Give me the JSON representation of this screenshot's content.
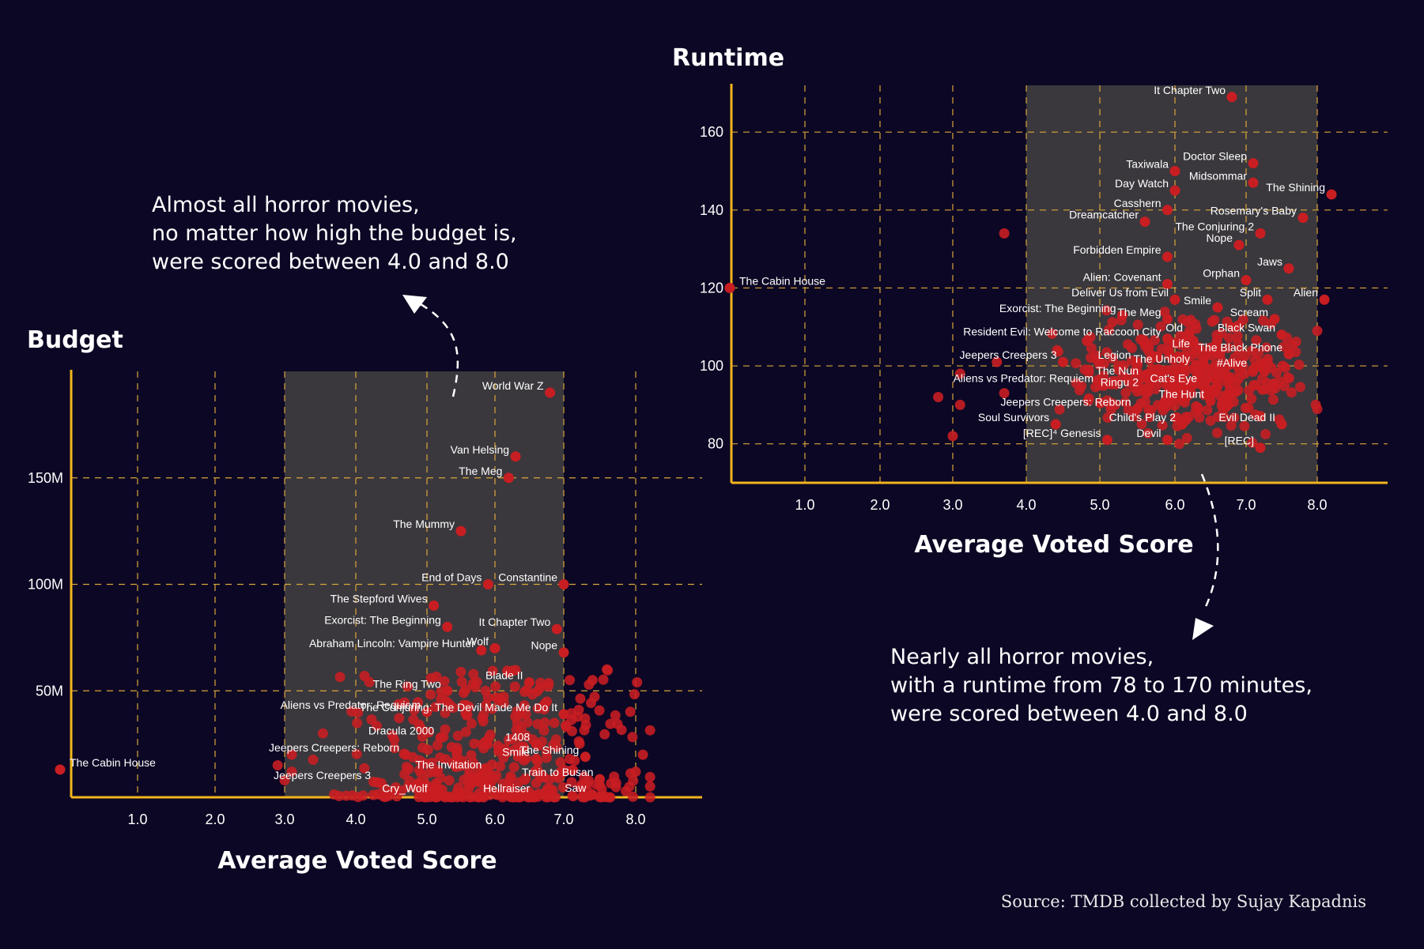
{
  "source": "Source: TMDB collected by Sujay Kapadnis",
  "annotations": {
    "budget_note": [
      "Almost all horror movies,",
      "no matter how high the budget is,",
      "were scored between 4.0 and 8.0"
    ],
    "runtime_note": [
      "Nearly all horror movies,",
      "with a runtime from 78 to 170 minutes,",
      "were scored between 4.0 and 8.0"
    ]
  },
  "colors": {
    "background": "#0c0724",
    "axis": "#f2b51d",
    "grid": "#d9a53a",
    "band": "#3a383d",
    "point": "#c81e22"
  },
  "chart_data": [
    {
      "id": "budget",
      "type": "scatter",
      "title": "Budget",
      "xlabel": "Average Voted Score",
      "ylabel": "Budget",
      "xlim": [
        0,
        9
      ],
      "ylim": [
        0,
        200000000
      ],
      "x_ticks": [
        1.0,
        2.0,
        3.0,
        4.0,
        5.0,
        6.0,
        7.0,
        8.0
      ],
      "x_tick_labels": [
        "1.0",
        "2.0",
        "3.0",
        "4.0",
        "5.0",
        "6.0",
        "7.0",
        "8.0"
      ],
      "y_ticks": [
        50000000,
        100000000,
        150000000
      ],
      "y_tick_labels": [
        "50M",
        "100M",
        "150M"
      ],
      "grid": true,
      "highlight_band": [
        3.0,
        7.0
      ],
      "labeled_points": [
        {
          "label": "World War Z",
          "x": 6.8,
          "y": 190000000
        },
        {
          "label": "Van Helsing",
          "x": 6.3,
          "y": 160000000
        },
        {
          "label": "The Meg",
          "x": 6.2,
          "y": 150000000
        },
        {
          "label": "The Mummy",
          "x": 5.5,
          "y": 125000000
        },
        {
          "label": "End of Days",
          "x": 5.9,
          "y": 100000000
        },
        {
          "label": "Constantine",
          "x": 7.0,
          "y": 100000000
        },
        {
          "label": "The Stepford Wives",
          "x": 5.1,
          "y": 90000000
        },
        {
          "label": "Exorcist: The Beginning",
          "x": 5.3,
          "y": 80000000
        },
        {
          "label": "It Chapter Two",
          "x": 6.9,
          "y": 79000000
        },
        {
          "label": "Abraham Lincoln: Vampire Hunter",
          "x": 5.8,
          "y": 69000000
        },
        {
          "label": "Wolf",
          "x": 6.0,
          "y": 70000000
        },
        {
          "label": "Nope",
          "x": 7.0,
          "y": 68000000
        },
        {
          "label": "Blade II",
          "x": 6.5,
          "y": 54000000
        },
        {
          "label": "The Ring Two",
          "x": 5.3,
          "y": 50000000
        },
        {
          "label": "Aliens vs Predator: Requiem",
          "x": 5.0,
          "y": 40000000
        },
        {
          "label": "The Conjuring: The Devil Made Me Do It",
          "x": 7.0,
          "y": 39000000
        },
        {
          "label": "Dracula 2000",
          "x": 5.2,
          "y": 28000000
        },
        {
          "label": "1408",
          "x": 6.6,
          "y": 25000000
        },
        {
          "label": "Jeepers Creepers: Reborn",
          "x": 4.7,
          "y": 20000000
        },
        {
          "label": "Smile",
          "x": 6.6,
          "y": 18000000
        },
        {
          "label": "The Shining",
          "x": 7.3,
          "y": 19000000
        },
        {
          "label": "The Invitation",
          "x": 5.9,
          "y": 12000000
        },
        {
          "label": "Train to Busan",
          "x": 7.5,
          "y": 8500000
        },
        {
          "label": "Jeepers Creepers 3",
          "x": 4.3,
          "y": 7000000
        },
        {
          "label": "Cry_Wolf",
          "x": 5.1,
          "y": 1000000
        },
        {
          "label": "Hellraiser",
          "x": 6.6,
          "y": 1000000
        },
        {
          "label": "Saw",
          "x": 7.4,
          "y": 1200000
        },
        {
          "label": "The Cabin House",
          "x": 0.0,
          "y": 13000000
        }
      ],
      "cloud": {
        "x_range": [
          2.9,
          8.2
        ],
        "y_range": [
          0,
          60000000
        ],
        "count": 420,
        "center_x": 6.0,
        "extra": [
          [
            2.9,
            15000000
          ],
          [
            3.1,
            20000000
          ],
          [
            3.1,
            12000000
          ],
          [
            3.0,
            8000000
          ],
          [
            8.1,
            20000000
          ],
          [
            8.0,
            12000000
          ],
          [
            7.6,
            60000000
          ],
          [
            7.4,
            55000000
          ]
        ]
      }
    },
    {
      "id": "runtime",
      "type": "scatter",
      "title": "Runtime",
      "xlabel": "Average Voted Score",
      "ylabel": "Runtime",
      "xlim": [
        0,
        9
      ],
      "ylim": [
        70,
        172
      ],
      "x_ticks": [
        1.0,
        2.0,
        3.0,
        4.0,
        5.0,
        6.0,
        7.0,
        8.0
      ],
      "x_tick_labels": [
        "1.0",
        "2.0",
        "3.0",
        "4.0",
        "5.0",
        "6.0",
        "7.0",
        "8.0"
      ],
      "y_ticks": [
        80,
        100,
        120,
        140,
        160
      ],
      "y_tick_labels": [
        "80",
        "100",
        "120",
        "140",
        "160"
      ],
      "grid": true,
      "highlight_band": [
        4.0,
        8.0
      ],
      "labeled_points": [
        {
          "label": "It Chapter Two",
          "x": 6.8,
          "y": 169
        },
        {
          "label": "Doctor Sleep",
          "x": 7.1,
          "y": 152
        },
        {
          "label": "Taxiwala",
          "x": 6.0,
          "y": 150
        },
        {
          "label": "Midsommar",
          "x": 7.1,
          "y": 147
        },
        {
          "label": "Day Watch",
          "x": 6.0,
          "y": 145
        },
        {
          "label": "The Shining",
          "x": 8.2,
          "y": 144
        },
        {
          "label": "Casshern",
          "x": 5.9,
          "y": 140
        },
        {
          "label": "Rosemary's Baby",
          "x": 7.8,
          "y": 138
        },
        {
          "label": "Dreamcatcher",
          "x": 5.6,
          "y": 137
        },
        {
          "label": "The Conjuring 2",
          "x": 7.2,
          "y": 134
        },
        {
          "label": "Nope",
          "x": 6.9,
          "y": 131
        },
        {
          "label": "Forbidden Empire",
          "x": 5.9,
          "y": 128
        },
        {
          "label": "Jaws",
          "x": 7.6,
          "y": 125
        },
        {
          "label": "Orphan",
          "x": 7.0,
          "y": 122
        },
        {
          "label": "Alien: Covenant",
          "x": 5.9,
          "y": 121
        },
        {
          "label": "Deliver Us from Evil",
          "x": 6.0,
          "y": 117
        },
        {
          "label": "Split",
          "x": 7.3,
          "y": 117
        },
        {
          "label": "Alien",
          "x": 8.1,
          "y": 117
        },
        {
          "label": "Smile",
          "x": 6.6,
          "y": 115
        },
        {
          "label": "Exorcist: The Beginning",
          "x": 5.3,
          "y": 113
        },
        {
          "label": "The Meg",
          "x": 5.9,
          "y": 112
        },
        {
          "label": "Scream",
          "x": 7.4,
          "y": 112
        },
        {
          "label": "Resident Evil: Welcome to Raccoon City",
          "x": 5.9,
          "y": 107
        },
        {
          "label": "Old",
          "x": 6.2,
          "y": 108
        },
        {
          "label": "Black Swan",
          "x": 7.5,
          "y": 108
        },
        {
          "label": "Life",
          "x": 6.3,
          "y": 104
        },
        {
          "label": "The Black Phone",
          "x": 7.6,
          "y": 103
        },
        {
          "label": "Jeepers Creepers 3",
          "x": 4.5,
          "y": 101
        },
        {
          "label": "Legion",
          "x": 5.5,
          "y": 101
        },
        {
          "label": "The Unholy",
          "x": 6.3,
          "y": 100
        },
        {
          "label": "#Alive",
          "x": 7.1,
          "y": 99
        },
        {
          "label": "The Nun",
          "x": 5.6,
          "y": 97
        },
        {
          "label": "Aliens vs Predator: Requiem",
          "x": 5.0,
          "y": 95
        },
        {
          "label": "Cat's Eye",
          "x": 6.4,
          "y": 95
        },
        {
          "label": "Ringu 2",
          "x": 5.6,
          "y": 94
        },
        {
          "label": "The Hunt",
          "x": 6.5,
          "y": 91
        },
        {
          "label": "Jeepers Creepers: Reborn",
          "x": 5.5,
          "y": 89
        },
        {
          "label": "Soul Survivors",
          "x": 4.4,
          "y": 85
        },
        {
          "label": "Child's Play 2",
          "x": 6.1,
          "y": 85
        },
        {
          "label": "Evil Dead II",
          "x": 7.5,
          "y": 85
        },
        {
          "label": "[REC]⁴ Genesis",
          "x": 5.1,
          "y": 81
        },
        {
          "label": "Devil",
          "x": 5.9,
          "y": 81
        },
        {
          "label": "[REC]",
          "x": 7.2,
          "y": 79
        },
        {
          "label": "The Cabin House",
          "x": 0.0,
          "y": 120
        }
      ],
      "cloud": {
        "x_range": [
          4.0,
          8.0
        ],
        "y_range": [
          78,
          130
        ],
        "count": 380,
        "center_x": 6.2,
        "extra": [
          [
            3.7,
            134
          ],
          [
            2.8,
            92
          ],
          [
            3.1,
            98
          ],
          [
            3.1,
            90
          ],
          [
            3.0,
            82
          ],
          [
            3.7,
            93
          ],
          [
            3.6,
            101
          ],
          [
            8.0,
            109
          ]
        ]
      }
    }
  ]
}
